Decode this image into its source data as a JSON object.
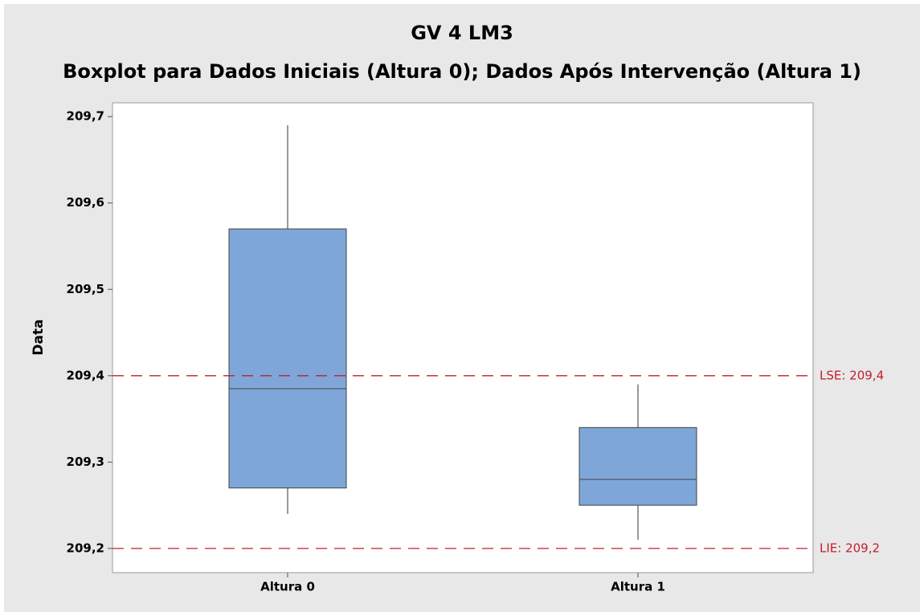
{
  "chart_data": {
    "type": "boxplot",
    "title": "GV 4 LM3",
    "subtitle": "Boxplot para Dados Iniciais (Altura 0); Dados Após Intervenção (Altura 1)",
    "ylabel": "Data",
    "categories": [
      "Altura 0",
      "Altura 1"
    ],
    "boxes": [
      {
        "min": 209.24,
        "q1": 209.27,
        "median": 209.385,
        "q3": 209.57,
        "max": 209.69
      },
      {
        "min": 209.21,
        "q1": 209.25,
        "median": 209.28,
        "q3": 209.34,
        "max": 209.39
      }
    ],
    "color": "#7ea6d9",
    "ylim": [
      209.172,
      209.716
    ],
    "yticks": [
      {
        "value": 209.2,
        "label": "209,2"
      },
      {
        "value": 209.3,
        "label": "209,3"
      },
      {
        "value": 209.4,
        "label": "209,4"
      },
      {
        "value": 209.5,
        "label": "209,5"
      },
      {
        "value": 209.6,
        "label": "209,6"
      },
      {
        "value": 209.7,
        "label": "209,7"
      }
    ],
    "reference_lines": [
      {
        "value": 209.4,
        "label": "LSE: 209,4",
        "color": "#c0202a"
      },
      {
        "value": 209.2,
        "label": "LIE: 209,2",
        "color": "#c0202a"
      }
    ],
    "grid": false
  }
}
